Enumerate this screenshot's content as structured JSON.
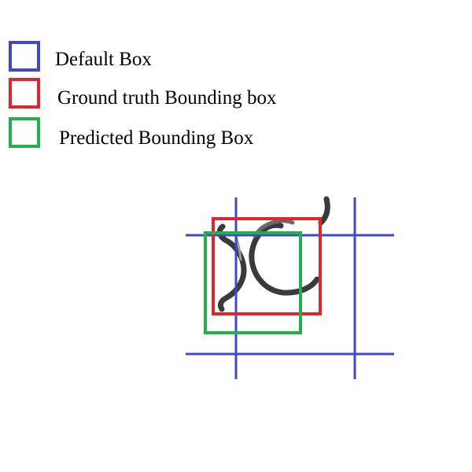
{
  "legend": [
    {
      "label": "Default Box",
      "color": "#3f49c6"
    },
    {
      "label": "Ground truth Bounding box",
      "color": "#e0262a"
    },
    {
      "label": "Predicted Bounding Box",
      "color": "#22b04c"
    }
  ],
  "colors": {
    "default_box": "#3f49c6",
    "ground_truth_box": "#e0262a",
    "predicted_box": "#22b04c",
    "glyph_stroke": "#3a3a3a"
  },
  "icons": {
    "glyph": "handwritten-x-glyph"
  }
}
